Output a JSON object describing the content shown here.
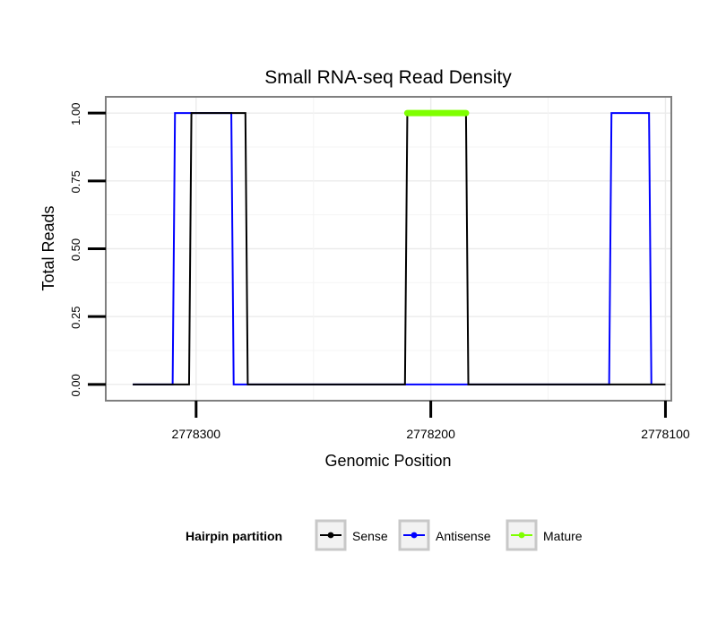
{
  "chart_data": {
    "type": "line",
    "title": "Small RNA-seq Read Density",
    "xlabel": "Genomic Position",
    "ylabel": "Total Reads",
    "x_reversed": true,
    "xlim": [
      2778338.5,
      2778097.5
    ],
    "ylim": [
      -0.06,
      1.06
    ],
    "x_ticks": [
      2778300,
      2778200,
      2778100
    ],
    "x_tick_labels": [
      "2778300",
      "2778200",
      "2778100"
    ],
    "y_ticks": [
      0.0,
      0.25,
      0.5,
      0.75,
      1.0
    ],
    "y_tick_labels": [
      "0.00",
      "0.25",
      "0.50",
      "0.75",
      "1.00"
    ],
    "grid": true,
    "legend": {
      "title": "Hairpin partition",
      "position": "bottom",
      "entries": [
        "Sense",
        "Antisense",
        "Mature"
      ]
    },
    "series": [
      {
        "name": "Antisense",
        "color": "#0000ff",
        "x": [
          2778327,
          2778310,
          2778309,
          2778285,
          2778284,
          2778124,
          2778123,
          2778107,
          2778106
        ],
        "y": [
          0,
          0,
          1,
          1,
          0,
          0,
          1,
          1,
          0
        ]
      },
      {
        "name": "Sense",
        "color": "#000000",
        "x": [
          2778327,
          2778303,
          2778302,
          2778279,
          2778278,
          2778211,
          2778210,
          2778185,
          2778184,
          2778100
        ],
        "y": [
          0,
          0,
          1,
          1,
          0,
          0,
          1,
          1,
          0,
          0
        ]
      },
      {
        "name": "Mature",
        "color": "#7fff00",
        "x": [
          2778210,
          2778185
        ],
        "y": [
          1,
          1
        ]
      }
    ]
  }
}
